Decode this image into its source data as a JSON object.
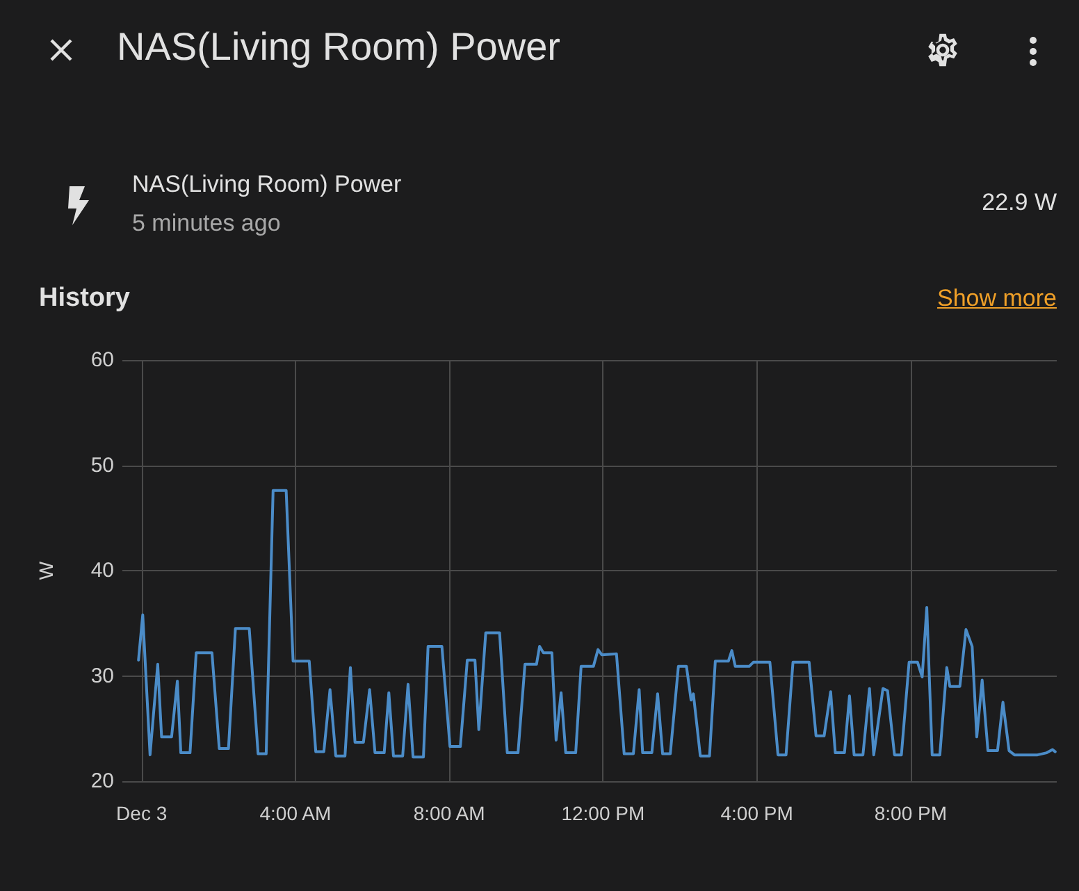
{
  "chart_data": {
    "type": "line",
    "title": "NAS(Living Room) Power",
    "ylabel": "W",
    "annotations": [
      "NAS(Living Room) Power",
      "5 minutes ago",
      "22.9 W",
      "History",
      "Show more"
    ],
    "x": [
      -0.08,
      0.03,
      0.22,
      0.42,
      0.52,
      0.78,
      0.93,
      1.02,
      1.26,
      1.42,
      1.83,
      2.02,
      2.26,
      2.44,
      2.8,
      3.03,
      3.24,
      3.42,
      3.76,
      3.94,
      4.36,
      4.53,
      4.74,
      4.9,
      5.05,
      5.29,
      5.43,
      5.55,
      5.77,
      5.93,
      6.07,
      6.31,
      6.43,
      6.55,
      6.79,
      6.93,
      7.06,
      7.33,
      7.45,
      7.81,
      8.02,
      8.29,
      8.47,
      8.67,
      8.77,
      8.95,
      9.31,
      9.51,
      9.79,
      9.97,
      10.27,
      10.35,
      10.45,
      10.67,
      10.78,
      10.91,
      11.03,
      11.29,
      11.43,
      11.75,
      11.87,
      11.97,
      12.35,
      12.55,
      12.79,
      12.94,
      13.03,
      13.27,
      13.42,
      13.55,
      13.75,
      13.96,
      14.17,
      14.29,
      14.35,
      14.53,
      14.77,
      14.92,
      15.26,
      15.35,
      15.44,
      15.8,
      15.91,
      16.34,
      16.55,
      16.76,
      16.94,
      17.36,
      17.54,
      17.75,
      17.92,
      18.04,
      18.28,
      18.41,
      18.53,
      18.76,
      18.93,
      19.04,
      19.28,
      19.4,
      19.58,
      19.76,
      19.96,
      20.18,
      20.3,
      20.42,
      20.56,
      20.76,
      20.94,
      21.02,
      21.28,
      21.44,
      21.6,
      21.72,
      21.86,
      22.01,
      22.26,
      22.4,
      22.56,
      22.7,
      23.3,
      23.54,
      23.69,
      23.76
    ],
    "series": [
      {
        "color": "#4b8cc8",
        "values": [
          31.5,
          35.8,
          22.5,
          31.1,
          24.2,
          24.2,
          29.5,
          22.7,
          22.7,
          32.2,
          32.2,
          23.1,
          23.1,
          34.5,
          34.5,
          22.6,
          22.6,
          47.6,
          47.6,
          31.4,
          31.4,
          22.8,
          22.8,
          28.7,
          22.4,
          22.4,
          30.8,
          23.7,
          23.7,
          28.7,
          22.7,
          22.7,
          28.4,
          22.4,
          22.4,
          29.2,
          22.3,
          22.3,
          32.8,
          32.8,
          23.3,
          23.3,
          31.5,
          31.5,
          24.9,
          34.1,
          34.1,
          22.7,
          22.7,
          31.1,
          31.1,
          32.8,
          32.2,
          32.2,
          23.9,
          28.4,
          22.7,
          22.7,
          30.9,
          30.9,
          32.5,
          32.0,
          32.1,
          22.6,
          22.6,
          28.7,
          22.7,
          22.7,
          28.3,
          22.6,
          22.6,
          30.9,
          30.9,
          27.7,
          28.3,
          22.4,
          22.4,
          31.4,
          31.4,
          32.4,
          30.9,
          30.9,
          31.3,
          31.3,
          22.5,
          22.5,
          31.3,
          31.3,
          24.3,
          24.3,
          28.5,
          22.7,
          22.7,
          28.1,
          22.5,
          22.5,
          28.8,
          22.5,
          28.8,
          28.6,
          22.5,
          22.5,
          31.3,
          31.3,
          29.9,
          36.5,
          22.5,
          22.5,
          30.8,
          29.0,
          29.0,
          34.4,
          32.8,
          24.2,
          29.6,
          22.9,
          22.9,
          27.5,
          22.9,
          22.5,
          22.5,
          22.7,
          23.0,
          22.8
        ]
      }
    ],
    "xlim": [
      -0.5,
      23.8
    ],
    "xticks": [
      {
        "value": 0,
        "label": "Dec 3"
      },
      {
        "value": 4,
        "label": "4:00 AM"
      },
      {
        "value": 8,
        "label": "8:00 AM"
      },
      {
        "value": 12,
        "label": "12:00 PM"
      },
      {
        "value": 16,
        "label": "4:00 PM"
      },
      {
        "value": 20,
        "label": "8:00 PM"
      }
    ],
    "ylim": [
      20,
      60
    ],
    "yticks": [
      20,
      30,
      40,
      50,
      60
    ],
    "grid": true,
    "marker": "none",
    "line_style": "solid"
  }
}
